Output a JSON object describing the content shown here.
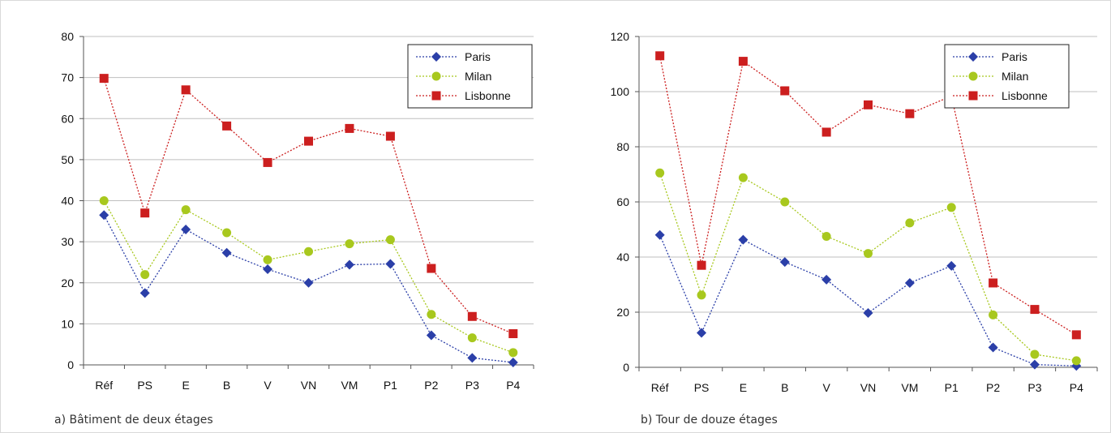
{
  "chart_data": [
    {
      "type": "line",
      "caption": "a) Bâtiment de deux étages",
      "categories": [
        "Réf",
        "PS",
        "E",
        "B",
        "V",
        "VN",
        "VM",
        "P1",
        "P2",
        "P3",
        "P4"
      ],
      "ylim": [
        0,
        80
      ],
      "yticks": [
        0,
        10,
        20,
        30,
        40,
        50,
        60,
        70,
        80
      ],
      "grid": true,
      "legend": "top-right",
      "series": [
        {
          "name": "Paris",
          "color": "#2b3fa8",
          "marker": "diamond",
          "values": [
            36.5,
            17.5,
            33,
            27.3,
            23.3,
            20,
            24.4,
            24.6,
            7.2,
            1.7,
            0.6
          ]
        },
        {
          "name": "Milan",
          "color": "#a8c81e",
          "marker": "circle",
          "values": [
            40,
            22,
            37.8,
            32.2,
            25.6,
            27.6,
            29.5,
            30.5,
            12.3,
            6.6,
            3
          ]
        },
        {
          "name": "Lisbonne",
          "color": "#cc1f1f",
          "marker": "square",
          "values": [
            69.8,
            37,
            67,
            58.2,
            49.3,
            54.5,
            57.6,
            55.7,
            23.5,
            11.8,
            7.6
          ]
        }
      ]
    },
    {
      "type": "line",
      "caption": "b) Tour de douze étages",
      "categories": [
        "Réf",
        "PS",
        "E",
        "B",
        "V",
        "VN",
        "VM",
        "P1",
        "P2",
        "P3",
        "P4"
      ],
      "ylim": [
        0,
        120
      ],
      "yticks": [
        0,
        20,
        40,
        60,
        80,
        100,
        120
      ],
      "grid": true,
      "legend": "top-right",
      "series": [
        {
          "name": "Paris",
          "color": "#2b3fa8",
          "marker": "diamond",
          "values": [
            48,
            12.5,
            46.3,
            38.2,
            31.8,
            19.7,
            30.6,
            36.8,
            7.2,
            1,
            0.5
          ]
        },
        {
          "name": "Milan",
          "color": "#a8c81e",
          "marker": "circle",
          "values": [
            70.5,
            26.2,
            68.8,
            60,
            47.5,
            41.3,
            52.4,
            58,
            19,
            4.7,
            2.4
          ]
        },
        {
          "name": "Lisbonne",
          "color": "#cc1f1f",
          "marker": "square",
          "values": [
            113,
            37,
            111,
            100.3,
            85.3,
            95.2,
            92,
            98.4,
            30.6,
            21,
            11.8
          ]
        }
      ]
    }
  ]
}
